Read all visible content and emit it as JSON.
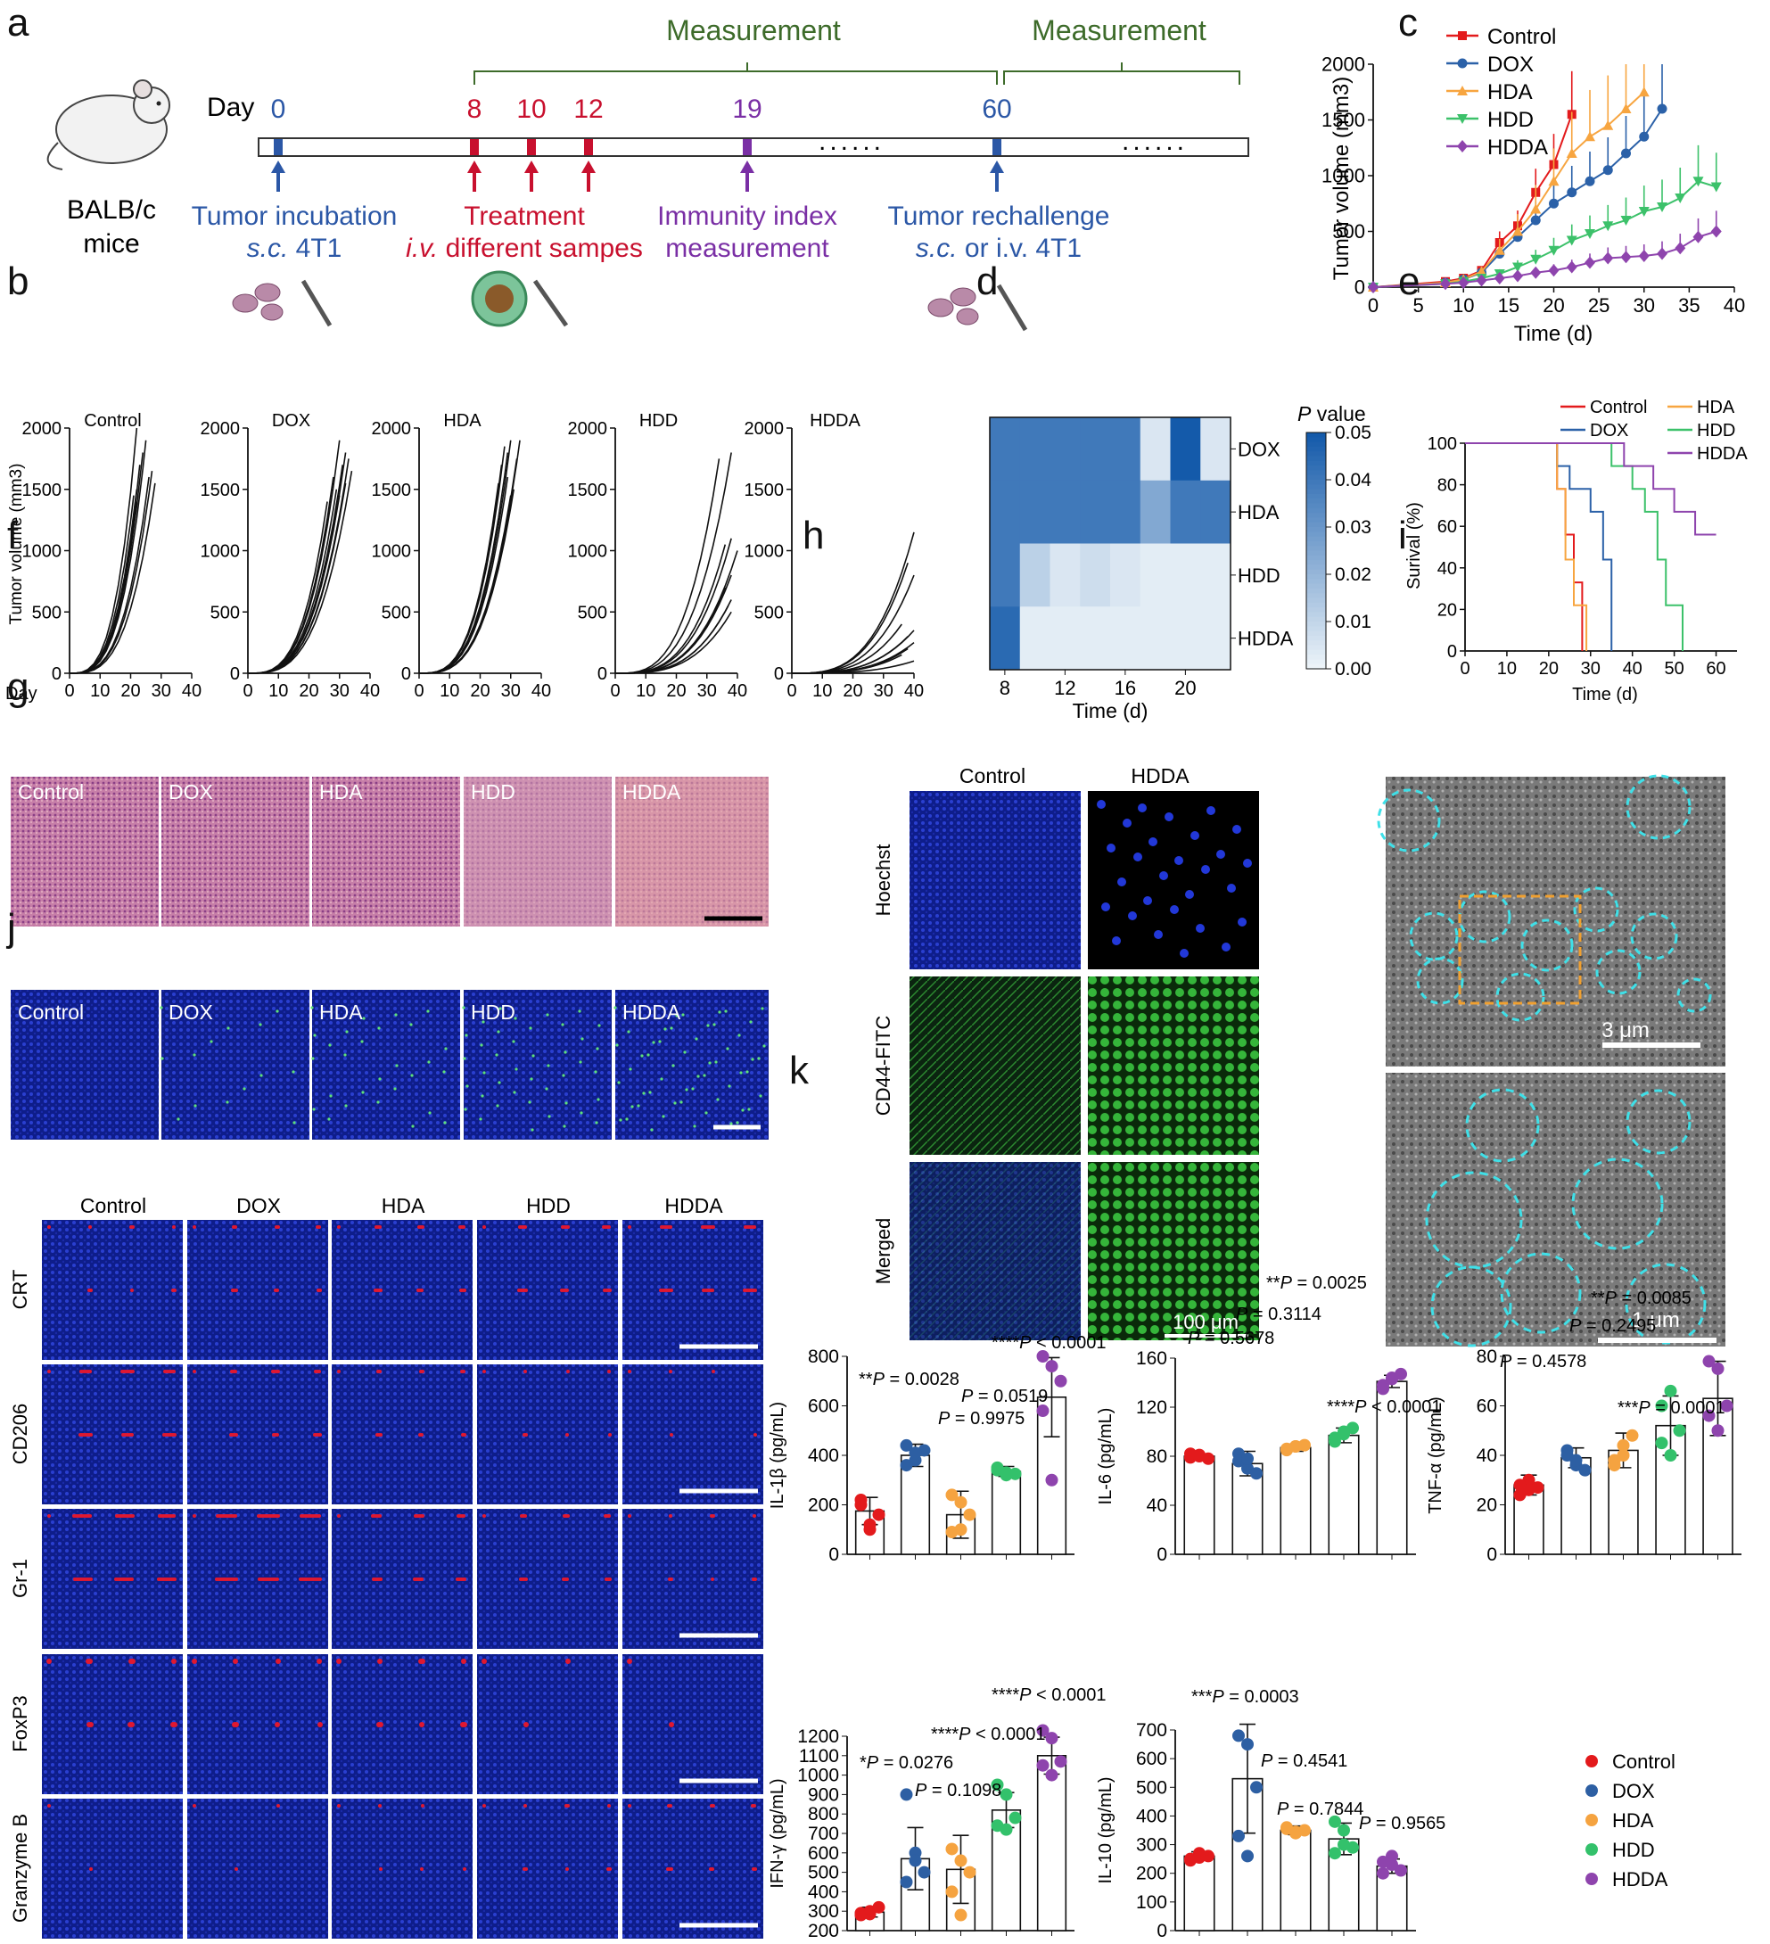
{
  "panels": {
    "a": "a",
    "b": "b",
    "c": "c",
    "d": "d",
    "e": "e",
    "f": "f",
    "g": "g",
    "h": "h",
    "i": "i",
    "j": "j",
    "k": "k"
  },
  "a": {
    "mice": "BALB/c\nmice",
    "day_label": "Day",
    "measurement1": "Measurement",
    "measurement2": "Measurement",
    "days": [
      {
        "d": "0",
        "color": "#2b57a6"
      },
      {
        "d": "8",
        "color": "#c8102e"
      },
      {
        "d": "10",
        "color": "#c8102e"
      },
      {
        "d": "12",
        "color": "#c8102e"
      },
      {
        "d": "19",
        "color": "#7a2fa5"
      },
      {
        "d": "60",
        "color": "#2b57a6"
      }
    ],
    "dots": "......",
    "steps": [
      {
        "l1": "Tumor incubation",
        "l2a": "s.c.",
        "l2b": " 4T1",
        "color": "#2b57a6"
      },
      {
        "l1": "Treatment",
        "l2a": "i.v.",
        "l2b": " different sampes",
        "color": "#c8102e"
      },
      {
        "l1": "Immunity index",
        "l2a": "",
        "l2b": "measurement",
        "color": "#7a2fa5"
      },
      {
        "l1": "Tumor rechallenge",
        "l2a": "s.c.",
        "l2b": " or i.v. 4T1",
        "color": "#2b57a6"
      }
    ]
  },
  "groups": [
    "Control",
    "DOX",
    "HDA",
    "HDD",
    "HDDA"
  ],
  "colors": {
    "Control": "#e31a1c",
    "DOX": "#2b61a8",
    "HDA": "#f7a540",
    "HDD": "#3cc16a",
    "HDDA": "#8e44ad",
    "k_Control": "#e31a1c",
    "k_DOX": "#2d5fa3",
    "k_HDA": "#f5a340",
    "k_HDD": "#33c16b",
    "k_HDDA": "#8e44ad"
  },
  "chart_data": [
    {
      "id": "c",
      "type": "line",
      "xlabel": "Time (d)",
      "ylabel": "Tumor volume (mm3)",
      "xlim": [
        0,
        40
      ],
      "ylim": [
        0,
        2000
      ],
      "xticks": [
        0,
        5,
        10,
        15,
        20,
        25,
        30,
        35,
        40
      ],
      "yticks": [
        0,
        500,
        1000,
        1500,
        2000
      ],
      "series": [
        {
          "name": "Control",
          "x": [
            0,
            8,
            10,
            12,
            14,
            16,
            18,
            20,
            22
          ],
          "y": [
            0,
            50,
            80,
            150,
            400,
            550,
            850,
            1100,
            1550
          ]
        },
        {
          "name": "DOX",
          "x": [
            0,
            8,
            10,
            12,
            14,
            16,
            18,
            20,
            22,
            24,
            26,
            28,
            30,
            32
          ],
          "y": [
            0,
            40,
            70,
            130,
            300,
            450,
            600,
            750,
            850,
            950,
            1050,
            1200,
            1350,
            1600
          ]
        },
        {
          "name": "HDA",
          "x": [
            0,
            8,
            10,
            12,
            14,
            16,
            18,
            20,
            22,
            24,
            26,
            28,
            30
          ],
          "y": [
            0,
            40,
            70,
            140,
            330,
            500,
            700,
            950,
            1200,
            1350,
            1450,
            1600,
            1750
          ]
        },
        {
          "name": "HDD",
          "x": [
            0,
            8,
            10,
            12,
            14,
            16,
            18,
            20,
            22,
            24,
            26,
            28,
            30,
            32,
            34,
            36,
            38
          ],
          "y": [
            0,
            30,
            50,
            80,
            120,
            180,
            250,
            330,
            420,
            480,
            550,
            600,
            680,
            720,
            800,
            950,
            900
          ]
        },
        {
          "name": "HDDA",
          "x": [
            0,
            8,
            10,
            12,
            14,
            16,
            18,
            20,
            22,
            24,
            26,
            28,
            30,
            32,
            34,
            36,
            38
          ],
          "y": [
            0,
            30,
            40,
            60,
            80,
            100,
            130,
            150,
            180,
            220,
            260,
            270,
            280,
            300,
            350,
            450,
            500
          ]
        }
      ]
    },
    {
      "id": "b",
      "type": "line",
      "ylabel": "Tumor volume (mm3)",
      "xlabel_prefix": "Day",
      "xlim": [
        0,
        40
      ],
      "ylim": [
        0,
        2000
      ],
      "xticks": [
        0,
        10,
        20,
        30,
        40
      ],
      "yticks": [
        0,
        500,
        1000,
        1500,
        2000
      ],
      "panels": [
        {
          "title": "Control",
          "end_x": [
            22,
            23,
            21,
            26,
            28,
            24,
            22,
            25,
            27,
            22
          ],
          "end_y": [
            2000,
            1700,
            1450,
            1600,
            1550,
            1800,
            1400,
            1900,
            1650,
            1500
          ]
        },
        {
          "title": "DOX",
          "end_x": [
            30,
            32,
            28,
            33,
            31,
            29,
            34,
            30,
            32,
            26
          ],
          "end_y": [
            1900,
            1550,
            1600,
            1750,
            1700,
            1500,
            1650,
            1450,
            1800,
            1400
          ]
        },
        {
          "title": "HDA",
          "end_x": [
            30,
            28,
            32,
            29,
            31,
            27,
            30,
            33,
            26,
            29
          ],
          "end_y": [
            1900,
            1850,
            1750,
            1600,
            1500,
            1700,
            1450,
            1900,
            1550,
            1800
          ]
        },
        {
          "title": "HDD",
          "end_x": [
            34,
            38,
            38,
            36,
            40,
            38,
            38,
            37,
            38,
            36
          ],
          "end_y": [
            1750,
            1800,
            1100,
            1050,
            1000,
            800,
            600,
            550,
            500,
            700
          ]
        },
        {
          "title": "HDDA",
          "end_x": [
            40,
            38,
            40,
            36,
            40,
            38,
            40,
            38,
            36,
            40
          ],
          "end_y": [
            1150,
            900,
            800,
            400,
            350,
            300,
            250,
            200,
            150,
            100
          ]
        }
      ]
    },
    {
      "id": "d",
      "type": "heatmap",
      "xlabel": "Time (d)",
      "rows": [
        "DOX",
        "HDA",
        "HDD",
        "HDDA"
      ],
      "x": [
        8,
        10,
        12,
        14,
        16,
        18,
        20,
        22
      ],
      "xticks": [
        8,
        12,
        16,
        20
      ],
      "colorbar_title": "P value",
      "colorbar_ticks": [
        "0.00",
        "0.01",
        "0.02",
        "0.03",
        "0.04",
        "0.05"
      ],
      "values": [
        [
          0.04,
          0.04,
          0.04,
          0.04,
          0.04,
          0.005,
          0.05,
          0.005
        ],
        [
          0.04,
          0.04,
          0.04,
          0.04,
          0.04,
          0.025,
          0.04,
          0.04
        ],
        [
          0.04,
          0.012,
          0.005,
          0.008,
          0.005,
          0.003,
          0.003,
          0.003
        ],
        [
          0.045,
          0.003,
          0.003,
          0.003,
          0.003,
          0.003,
          0.003,
          0.003
        ]
      ]
    },
    {
      "id": "e",
      "type": "line",
      "step": true,
      "xlabel": "Time (d)",
      "ylabel": "Surival (%)",
      "xlim": [
        0,
        65
      ],
      "ylim": [
        0,
        100
      ],
      "xticks": [
        0,
        10,
        20,
        30,
        40,
        50,
        60
      ],
      "yticks": [
        0,
        20,
        40,
        60,
        80,
        100
      ],
      "series": [
        {
          "name": "Control",
          "x": [
            0,
            22,
            24,
            26,
            28
          ],
          "y": [
            100,
            78,
            56,
            33,
            0
          ]
        },
        {
          "name": "DOX",
          "x": [
            0,
            22,
            25,
            30,
            33,
            35
          ],
          "y": [
            100,
            89,
            78,
            67,
            44,
            0
          ]
        },
        {
          "name": "HDA",
          "x": [
            0,
            22,
            24,
            26,
            29
          ],
          "y": [
            100,
            78,
            44,
            22,
            0
          ]
        },
        {
          "name": "HDD",
          "x": [
            0,
            35,
            40,
            43,
            46,
            48,
            52
          ],
          "y": [
            100,
            89,
            78,
            67,
            44,
            22,
            0
          ]
        },
        {
          "name": "HDDA",
          "x": [
            0,
            38,
            45,
            50,
            55,
            58,
            60
          ],
          "y": [
            100,
            89,
            78,
            67,
            56,
            56,
            56
          ]
        }
      ]
    },
    {
      "id": "k1",
      "type": "bar",
      "ylabel": "IL-1β (pg/mL)",
      "ylim": [
        0,
        800
      ],
      "yticks": [
        0,
        200,
        400,
        600,
        800
      ],
      "values": [
        175,
        400,
        160,
        335,
        635
      ],
      "errors": [
        55,
        45,
        95,
        20,
        160
      ],
      "points": [
        [
          220,
          120,
          160,
          200,
          100
        ],
        [
          440,
          380,
          420,
          360,
          410
        ],
        [
          240,
          100,
          160,
          90,
          210
        ],
        [
          340,
          330,
          325,
          350,
          320
        ],
        [
          800,
          760,
          700,
          580,
          300
        ]
      ],
      "annotations": [
        "**P = 0.0028",
        "P = 0.9975",
        "P = 0.0519",
        "****P < 0.0001"
      ]
    },
    {
      "id": "k2",
      "type": "bar",
      "ylabel": "IL-6 (pg/mL)",
      "ylim": [
        0,
        160
      ],
      "yticks": [
        0,
        40,
        80,
        120,
        160
      ],
      "values": [
        80,
        74,
        87,
        97,
        141
      ],
      "errors": [
        2,
        10,
        3,
        6,
        5
      ],
      "points": [
        [
          79,
          81,
          78,
          82,
          80
        ],
        [
          82,
          70,
          66,
          76,
          78
        ],
        [
          86,
          88,
          89,
          85,
          88
        ],
        [
          92,
          98,
          103,
          95,
          100
        ],
        [
          138,
          143,
          147,
          135,
          144
        ]
      ],
      "annotations": [
        "P = 0.5678",
        "P = 0.3114",
        "**P = 0.0025",
        "****P < 0.0001"
      ]
    },
    {
      "id": "k3",
      "type": "bar",
      "ylabel": "TNF-α (pg/mL)",
      "ylim": [
        0,
        80
      ],
      "yticks": [
        0,
        20,
        40,
        60,
        80
      ],
      "values": [
        28,
        39,
        42,
        52,
        63
      ],
      "errors": [
        4,
        4,
        7,
        12,
        15
      ],
      "points": [
        [
          24,
          30,
          27,
          28,
          26
        ],
        [
          42,
          36,
          34,
          40,
          38
        ],
        [
          38,
          44,
          48,
          36,
          40
        ],
        [
          60,
          66,
          50,
          45,
          40
        ],
        [
          78,
          75,
          60,
          56,
          50
        ]
      ],
      "annotations": [
        "P = 0.4578",
        "P = 0.2495",
        "**P = 0.0085",
        "***P = 0.0001"
      ]
    },
    {
      "id": "k4",
      "type": "bar",
      "ylabel": "IFN-γ (pg/mL)",
      "ylim": [
        0,
        1200
      ],
      "yticks": [
        200,
        300,
        400,
        500,
        600,
        700,
        800,
        900,
        1000,
        1100,
        1200
      ],
      "values": [
        295,
        570,
        515,
        820,
        1100
      ],
      "errors": [
        25,
        160,
        175,
        90,
        95
      ],
      "points": [
        [
          280,
          300,
          320,
          290,
          285
        ],
        [
          900,
          600,
          500,
          450,
          560
        ],
        [
          620,
          560,
          500,
          400,
          280
        ],
        [
          950,
          900,
          780,
          740,
          720
        ],
        [
          1230,
          1190,
          1070,
          1050,
          1000
        ]
      ],
      "annotations": [
        "*P = 0.0276",
        "P = 0.1098",
        "****P < 0.0001",
        "****P < 0.0001"
      ]
    },
    {
      "id": "k5",
      "type": "bar",
      "ylabel": "IL-10 (pg/mL)",
      "ylim": [
        0,
        700
      ],
      "yticks": [
        0,
        100,
        200,
        300,
        400,
        500,
        600,
        700
      ],
      "values": [
        260,
        530,
        350,
        320,
        225
      ],
      "errors": [
        15,
        190,
        15,
        55,
        25
      ],
      "points": [
        [
          250,
          270,
          260,
          245,
          255
        ],
        [
          680,
          650,
          500,
          330,
          260
        ],
        [
          360,
          340,
          350,
          355,
          345
        ],
        [
          380,
          350,
          290,
          270,
          300
        ],
        [
          240,
          260,
          210,
          200,
          230
        ]
      ],
      "annotations": [
        "***P = 0.0003",
        "P = 0.4541",
        "P = 0.7844",
        "P = 0.9565"
      ]
    }
  ],
  "f": {
    "labels": [
      "Control",
      "DOX",
      "HDA",
      "HDD",
      "HDDA"
    ]
  },
  "g": {
    "labels": [
      "Control",
      "DOX",
      "HDA",
      "HDD",
      "HDDA"
    ]
  },
  "h": {
    "cols": [
      "Control",
      "HDDA"
    ],
    "rows": [
      "Hoechst",
      "CD44-FITC",
      "Merged"
    ],
    "scale": "100 μm"
  },
  "i": {
    "scale_top": "3 μm",
    "scale_bottom": "1 μm"
  },
  "j": {
    "cols": [
      "Control",
      "DOX",
      "HDA",
      "HDD",
      "HDDA"
    ],
    "rows": [
      "CRT",
      "CD206",
      "Gr-1",
      "FoxP3",
      "Granzyme B"
    ]
  },
  "k_legend": [
    "Control",
    "DOX",
    "HDA",
    "HDD",
    "HDDA"
  ]
}
